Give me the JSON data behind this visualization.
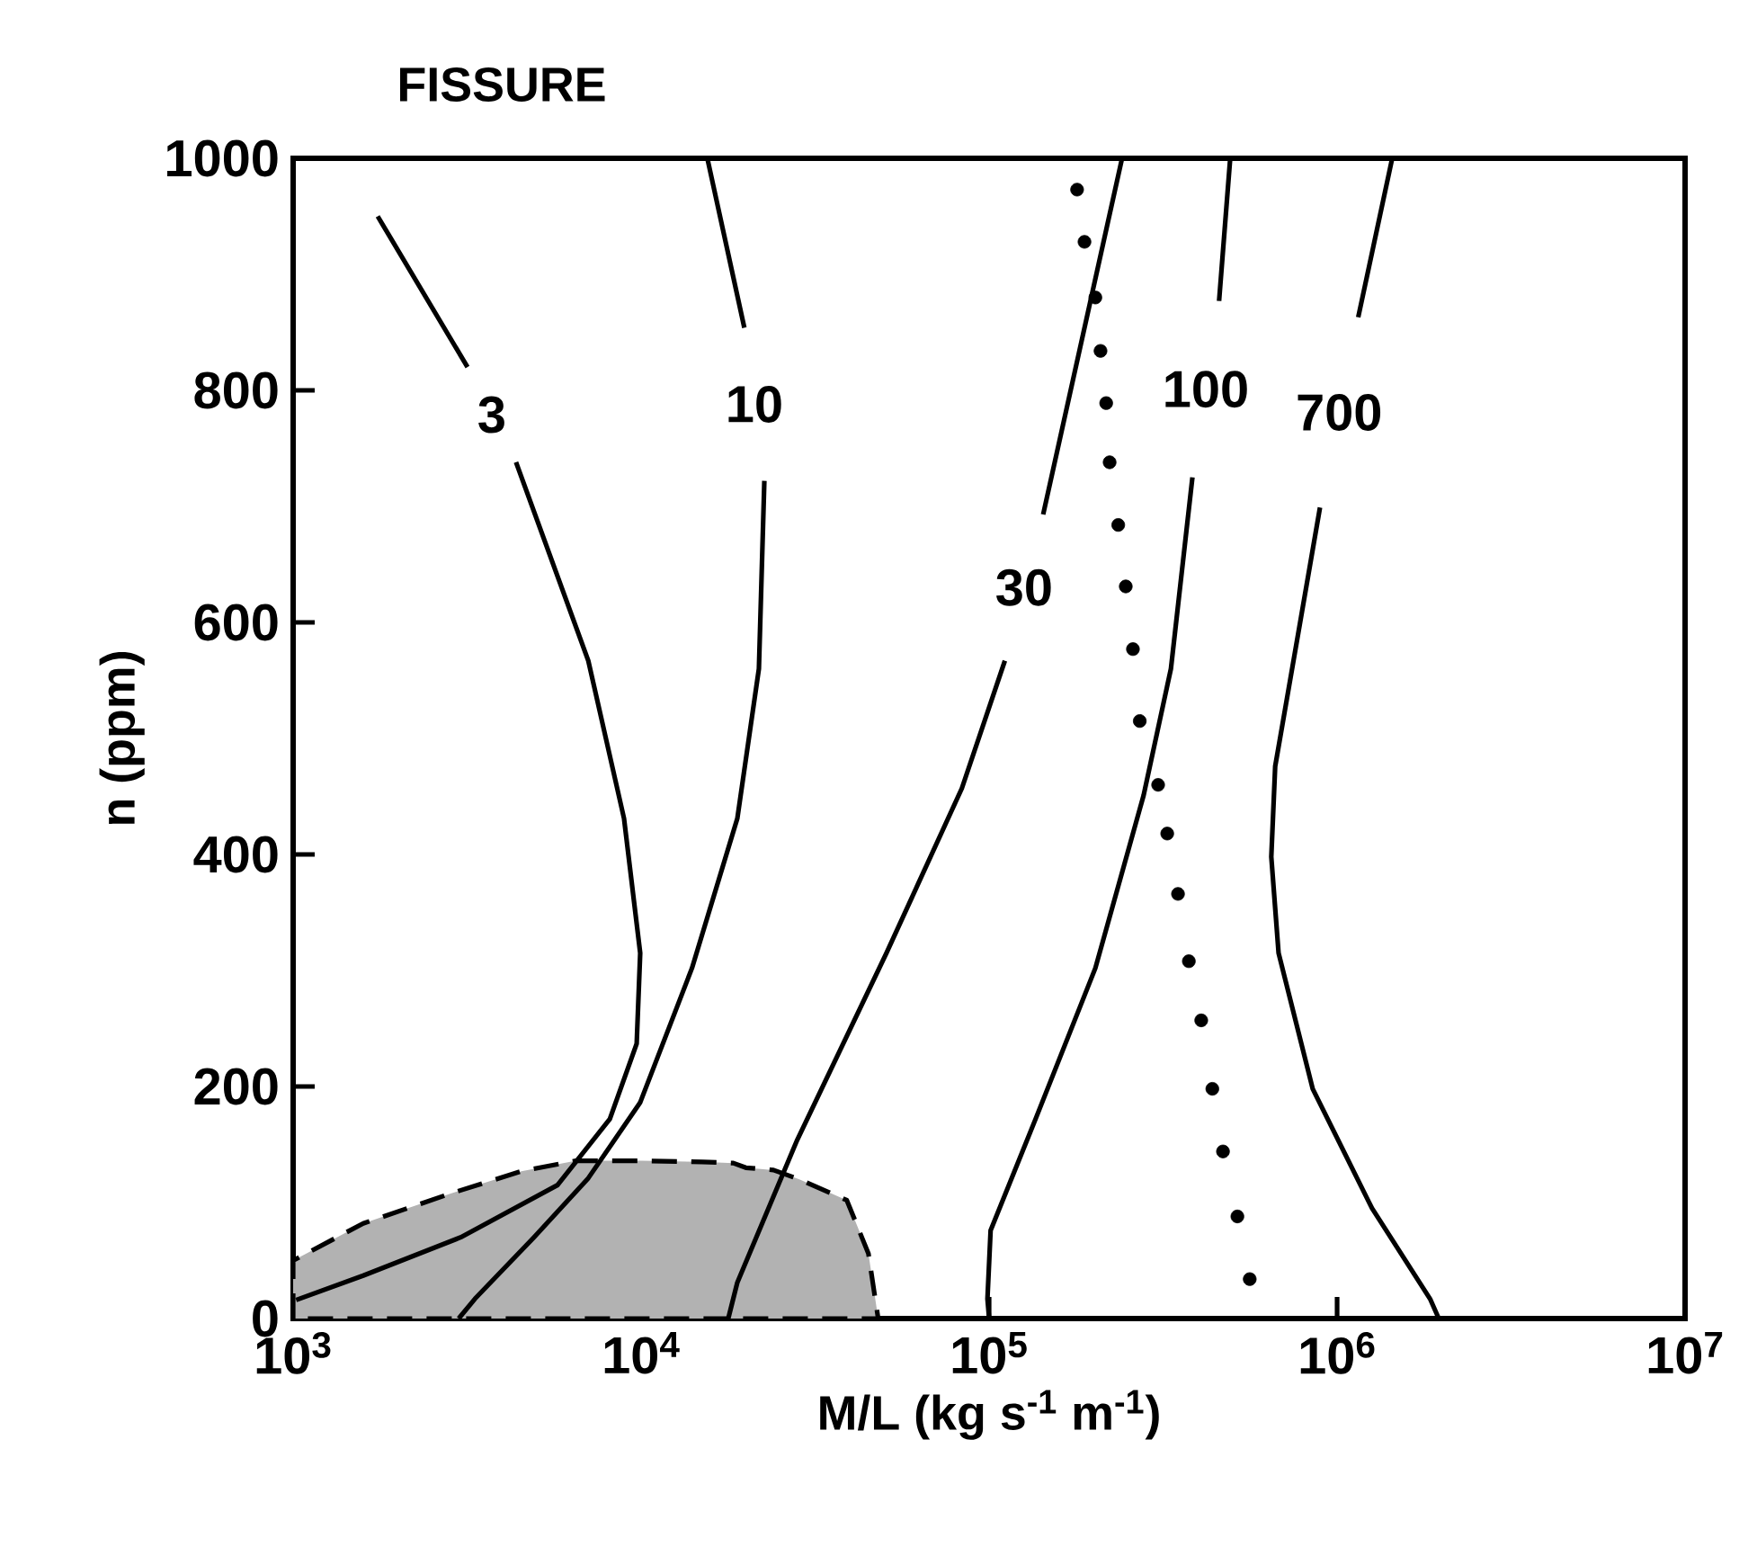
{
  "chart_data": {
    "type": "line",
    "title": "FISSURE",
    "xlabel": "M/L   (kg s$^{-1}$ m$^{-1}$)",
    "ylabel": "n   (ppm)",
    "log": "x",
    "xlim": [
      1000,
      10000000
    ],
    "ylim": [
      0,
      1000
    ],
    "xticks": [
      {
        "value": 1000,
        "label": "10$^{3}$"
      },
      {
        "value": 10000,
        "label": "10$^{4}$"
      },
      {
        "value": 100000,
        "label": "10$^{5}$"
      },
      {
        "value": 1000000,
        "label": "10$^{6}$"
      },
      {
        "value": 10000000,
        "label": "10$^{7}$"
      }
    ],
    "yticks": [
      0,
      200,
      400,
      600,
      800,
      1000
    ],
    "series": [
      {
        "type": "area",
        "color": "#000000",
        "line_style": "dashed",
        "x": [
          1000,
          1000,
          1590,
          2850,
          4530,
          6500,
          10000,
          15000,
          18400,
          20000,
          24000,
          28500,
          39000,
          45000,
          48000
        ],
        "values": [
          0,
          50,
          82,
          108,
          127,
          136,
          136,
          135,
          134,
          130,
          128,
          120,
          102,
          56,
          0
        ]
      },
      {
        "name": "3",
        "color": "#000000",
        "line_style": "solid",
        "marker": "none",
        "x": [
          1750,
          3170,
          null,
          4370,
          7050,
          8930,
          9940,
          9710,
          8130,
          5750,
          3030,
          1590,
          1020
        ],
        "values": [
          950,
          820,
          null,
          738,
          567,
          431,
          315,
          237,
          172,
          115,
          70,
          37,
          16
        ]
      },
      {
        "name": "10",
        "color": "#000000",
        "line_style": "solid",
        "marker": "none",
        "x": [
          15500,
          19800,
          null,
          22600,
          21800,
          18900,
          14000,
          9930,
          7050,
          4920,
          3330,
          2990
        ],
        "values": [
          1000,
          854,
          null,
          722,
          560,
          431,
          302,
          186,
          121,
          70,
          17,
          0
        ]
      },
      {
        "name": "30",
        "color": "#000000",
        "line_style": "solid",
        "marker": "none",
        "x": [
          241000,
          143000,
          null,
          111000,
          83500,
          50700,
          28000,
          18900,
          17800
        ],
        "values": [
          1000,
          693,
          null,
          567,
          457,
          315,
          153,
          31,
          0
        ]
      },
      {
        "name": "100",
        "color": "#000000",
        "line_style": "solid",
        "marker": "none",
        "x": [
          493000,
          458000,
          null,
          384000,
          333000,
          278000,
          202000,
          136000,
          101000,
          98900,
          100000
        ],
        "values": [
          1000,
          877,
          null,
          725,
          560,
          451,
          302,
          172,
          76,
          17,
          0
        ]
      },
      {
        "name": "700",
        "color": "#000000",
        "line_style": "solid",
        "marker": "none",
        "x": [
          1440000,
          1150000,
          null,
          893000,
          775000,
          664000,
          647000,
          679000,
          851000,
          1260000,
          1850000,
          1960000
        ],
        "values": [
          1000,
          863,
          null,
          699,
          592,
          476,
          398,
          315,
          198,
          95,
          17,
          0
        ]
      },
      {
        "type": "scatter",
        "color": "#000000",
        "marker": "circle",
        "x": [
          179000,
          188000,
          202000,
          209000,
          217000,
          222000,
          235000,
          247000,
          259000,
          271000,
          306000,
          325000,
          349000,
          375000,
          407000,
          438000,
          470000,
          517000,
          561000
        ],
        "values": [
          973,
          928,
          880,
          834,
          789,
          738,
          684,
          631,
          577,
          515,
          460,
          418,
          366,
          308,
          257,
          198,
          144,
          88,
          34
        ]
      }
    ]
  }
}
